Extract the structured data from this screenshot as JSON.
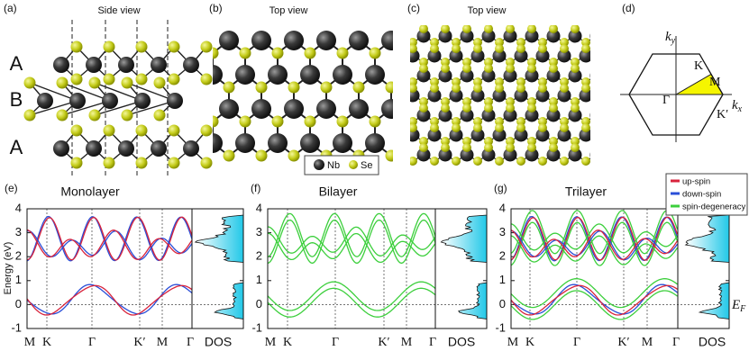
{
  "structure_panels": [
    {
      "label": "(a)",
      "title": "Side view",
      "layers": [
        "A",
        "B",
        "A"
      ]
    },
    {
      "label": "(b)",
      "title": "Top view",
      "legend": [
        "Nb",
        "Se"
      ]
    },
    {
      "label": "(c)",
      "title": "Top view"
    },
    {
      "label": "(d)",
      "ky": {
        "base": "k",
        "sub": "y"
      },
      "kx": {
        "base": "k",
        "sub": "x"
      },
      "points": [
        "K",
        "M",
        "Γ",
        "K′"
      ]
    }
  ],
  "band_panels": [
    {
      "label": "(e)",
      "title": "Monolayer",
      "ylabel": "Energy (eV)",
      "ylim": [
        -1,
        4
      ],
      "yticks": [
        -1,
        0,
        1,
        2,
        3,
        4
      ],
      "kpoints": [
        "M",
        "K",
        "Γ",
        "K′",
        "M",
        "Γ"
      ],
      "dos": "DOS"
    },
    {
      "label": "(f)",
      "title": "Bilayer",
      "ylim": [
        -1,
        4
      ],
      "yticks": [
        -1,
        0,
        1,
        2,
        3,
        4
      ],
      "kpoints": [
        "M",
        "K",
        "Γ",
        "K′",
        "M",
        "Γ"
      ],
      "dos": "DOS"
    },
    {
      "label": "(g)",
      "title": "Trilayer",
      "ylim": [
        -1,
        4
      ],
      "yticks": [
        -1,
        0,
        1,
        2,
        3,
        4
      ],
      "kpoints": [
        "M",
        "K",
        "Γ",
        "K′",
        "M",
        "Γ"
      ],
      "dos": "DOS",
      "legend": [
        {
          "name": "up-spin",
          "color": "#d8233c"
        },
        {
          "name": "down-spin",
          "color": "#2a4fd8"
        },
        {
          "name": "spin-degeneracy",
          "color": "#3ccf3c"
        }
      ],
      "fermi_label": {
        "base": "E",
        "sub": "F"
      }
    }
  ]
}
